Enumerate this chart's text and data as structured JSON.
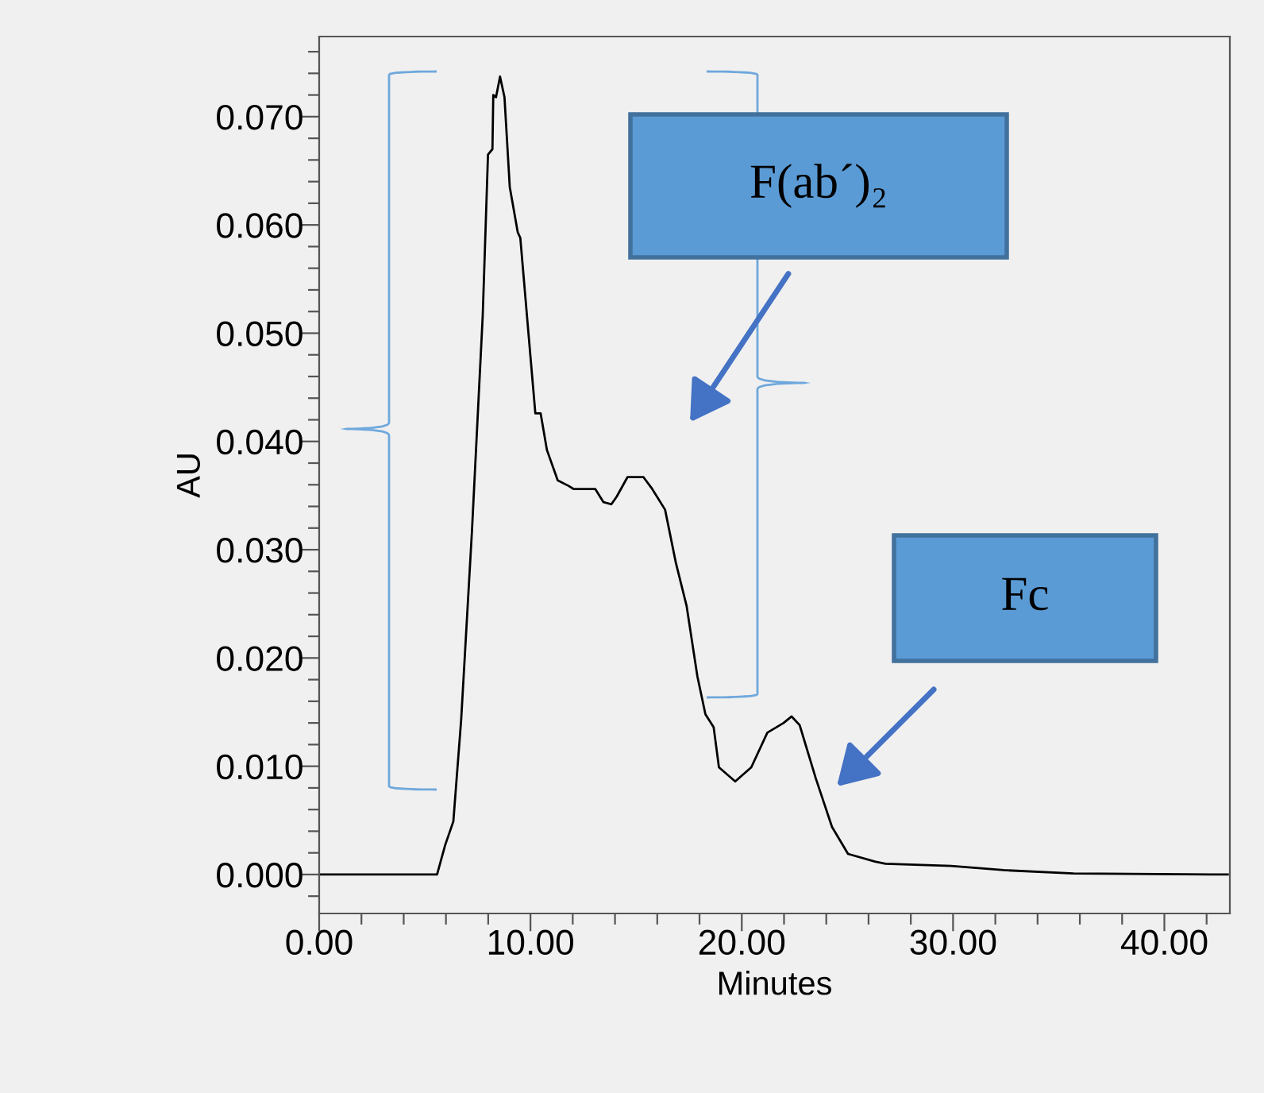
{
  "chart_data": {
    "type": "line",
    "xlabel": "Minutes",
    "ylabel": "AU",
    "x": [
      0,
      2,
      4,
      5.58,
      5.96,
      6.35,
      6.72,
      7.23,
      7.74,
      7.99,
      8.2,
      8.24,
      8.37,
      8.56,
      8.77,
      9.02,
      9.4,
      9.52,
      9.9,
      10.23,
      10.48,
      10.78,
      11.29,
      11.8,
      12.05,
      12.56,
      13.07,
      13.45,
      13.83,
      14.08,
      14.59,
      15.35,
      15.73,
      16.37,
      16.88,
      17.39,
      17.9,
      18.28,
      18.67,
      18.92,
      19.69,
      20.45,
      21.21,
      21.98,
      22.36,
      22.74,
      23.5,
      24.27,
      25.03,
      26.3,
      26.8,
      29.9,
      32.4,
      35.7,
      43.0
    ],
    "series": [
      {
        "color": "#000000",
        "values": [
          0.0,
          0.0,
          0.0,
          0.0,
          0.0027,
          0.0049,
          0.0143,
          0.0317,
          0.0516,
          0.0665,
          0.067,
          0.072,
          0.0718,
          0.0737,
          0.0718,
          0.0635,
          0.0593,
          0.0588,
          0.0501,
          0.0426,
          0.0426,
          0.0392,
          0.0364,
          0.0359,
          0.0356,
          0.0356,
          0.0356,
          0.0344,
          0.0342,
          0.0349,
          0.0367,
          0.0367,
          0.0357,
          0.0337,
          0.0288,
          0.0248,
          0.0183,
          0.0148,
          0.0136,
          0.0099,
          0.0086,
          0.0099,
          0.0131,
          0.014,
          0.0146,
          0.0138,
          0.0089,
          0.0044,
          0.0019,
          0.0012,
          0.001,
          0.0008,
          0.0004,
          0.0001,
          0.0
        ]
      }
    ],
    "xlim": [
      0,
      43.1
    ],
    "ylim": [
      -0.0036,
      0.0774
    ],
    "xticks": [
      {
        "value": 0,
        "label": "0.00"
      },
      {
        "value": 10,
        "label": "10.00"
      },
      {
        "value": 20,
        "label": "20.00"
      },
      {
        "value": 30,
        "label": "30.00"
      },
      {
        "value": 40,
        "label": "40.00"
      },
      {
        "value": 2,
        "label": null
      },
      {
        "value": 4,
        "label": null
      },
      {
        "value": 6,
        "label": null
      },
      {
        "value": 8,
        "label": null
      },
      {
        "value": 12,
        "label": null
      },
      {
        "value": 14,
        "label": null
      },
      {
        "value": 16,
        "label": null
      },
      {
        "value": 18,
        "label": null
      },
      {
        "value": 22,
        "label": null
      },
      {
        "value": 24,
        "label": null
      },
      {
        "value": 26,
        "label": null
      },
      {
        "value": 28,
        "label": null
      },
      {
        "value": 32,
        "label": null
      },
      {
        "value": 34,
        "label": null
      },
      {
        "value": 36,
        "label": null
      },
      {
        "value": 38,
        "label": null
      },
      {
        "value": 42,
        "label": null
      }
    ],
    "yticks": [
      {
        "value": 0,
        "label": "0.000"
      },
      {
        "value": 0.01,
        "label": "0.010"
      },
      {
        "value": 0.02,
        "label": "0.020"
      },
      {
        "value": 0.03,
        "label": "0.030"
      },
      {
        "value": 0.04,
        "label": "0.040"
      },
      {
        "value": 0.05,
        "label": "0.050"
      },
      {
        "value": 0.06,
        "label": "0.060"
      },
      {
        "value": 0.07,
        "label": "0.070"
      },
      {
        "value": -0.002,
        "label": null
      },
      {
        "value": 0.002,
        "label": null
      },
      {
        "value": 0.004,
        "label": null
      },
      {
        "value": 0.006,
        "label": null
      },
      {
        "value": 0.008,
        "label": null
      },
      {
        "value": 0.012,
        "label": null
      },
      {
        "value": 0.014,
        "label": null
      },
      {
        "value": 0.016,
        "label": null
      },
      {
        "value": 0.018,
        "label": null
      },
      {
        "value": 0.022,
        "label": null
      },
      {
        "value": 0.024,
        "label": null
      },
      {
        "value": 0.026,
        "label": null
      },
      {
        "value": 0.028,
        "label": null
      },
      {
        "value": 0.032,
        "label": null
      },
      {
        "value": 0.034,
        "label": null
      },
      {
        "value": 0.036,
        "label": null
      },
      {
        "value": 0.038,
        "label": null
      },
      {
        "value": 0.042,
        "label": null
      },
      {
        "value": 0.044,
        "label": null
      },
      {
        "value": 0.046,
        "label": null
      },
      {
        "value": 0.048,
        "label": null
      },
      {
        "value": 0.052,
        "label": null
      },
      {
        "value": 0.054,
        "label": null
      },
      {
        "value": 0.056,
        "label": null
      },
      {
        "value": 0.058,
        "label": null
      },
      {
        "value": 0.062,
        "label": null
      },
      {
        "value": 0.064,
        "label": null
      },
      {
        "value": 0.066,
        "label": null
      },
      {
        "value": 0.068,
        "label": null
      },
      {
        "value": 0.072,
        "label": null
      },
      {
        "value": 0.074,
        "label": null
      },
      {
        "value": 0.076,
        "label": null
      }
    ],
    "annotations": [
      "F(ab´)₂",
      "Fc"
    ],
    "grid": false,
    "legend": false,
    "marker": "none",
    "line_style": "solid"
  }
}
